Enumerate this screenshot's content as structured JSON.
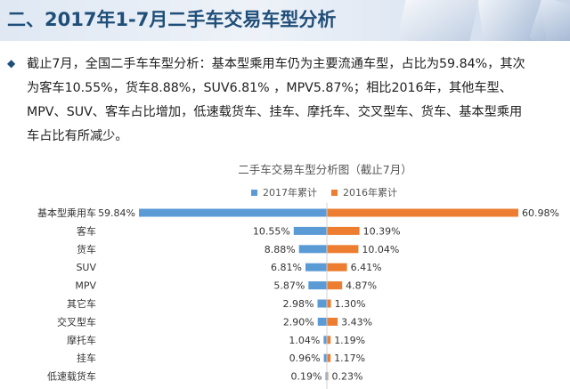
{
  "header": {
    "title": "二、2017年1-7月二手车交易车型分析"
  },
  "summary": {
    "bullet_icon": "diamond-bullet-icon",
    "lines": [
      "截止7月，全国二手车车型分析：基本型乘用车仍为主要流通车型，占比为59.84%，其次",
      "为客车10.55%，货车8.88%，SUV6.81% ，MPV5.87%；相比2016年，其他车型、",
      "MPV、SUV、客车占比增加，低速载货车、挂车、摩托车、交叉型车、货车、基本型乘用",
      "车占比有所减少。"
    ]
  },
  "chart_data": {
    "type": "bar",
    "orientation": "horizontal-diverging",
    "title": "二手车交易车型分析图（截止7月）",
    "categories": [
      "基本型乘用车",
      "客车",
      "货车",
      "SUV",
      "MPV",
      "其它车",
      "交叉型车",
      "摩托车",
      "挂车",
      "低速载货车"
    ],
    "series": [
      {
        "name": "2017年累计",
        "color": "#5b9bd5",
        "side": "left",
        "values": [
          59.84,
          10.55,
          8.88,
          6.81,
          5.87,
          2.98,
          2.9,
          1.04,
          0.96,
          0.19
        ],
        "labels": [
          "59.84%",
          "10.55%",
          "8.88%",
          "6.81%",
          "5.87%",
          "2.98%",
          "2.90%",
          "1.04%",
          "0.96%",
          "0.19%"
        ]
      },
      {
        "name": "2016年累计",
        "color": "#ed7d31",
        "side": "right",
        "values": [
          60.98,
          10.39,
          10.04,
          6.41,
          4.87,
          1.3,
          3.43,
          1.19,
          1.17,
          0.23
        ],
        "labels": [
          "60.98%",
          "10.39%",
          "10.04%",
          "6.41%",
          "4.87%",
          "1.30%",
          "3.43%",
          "1.19%",
          "1.17%",
          "0.23%"
        ]
      }
    ],
    "unit": "%",
    "legend": "top-center",
    "grid": false
  }
}
